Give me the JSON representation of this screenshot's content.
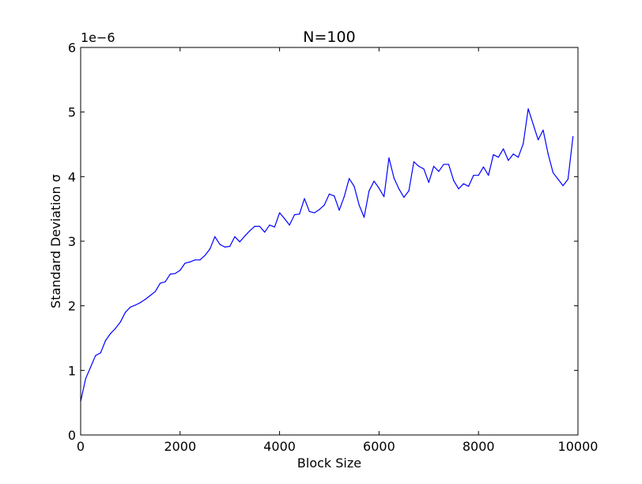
{
  "chart_data": {
    "type": "line",
    "title": "N=100",
    "xlabel": "Block Size",
    "ylabel": "Standard Deviation σ",
    "y_offset_text": "1e−6",
    "xlim": [
      0,
      10000
    ],
    "ylim": [
      0,
      6
    ],
    "x_ticks": [
      0,
      2000,
      4000,
      6000,
      8000,
      10000
    ],
    "x_tick_labels": [
      "0",
      "2000",
      "4000",
      "6000",
      "8000",
      "10000"
    ],
    "y_ticks": [
      0,
      1,
      2,
      3,
      4,
      5,
      6
    ],
    "y_tick_labels": [
      "0",
      "1",
      "2",
      "3",
      "4",
      "5",
      "6"
    ],
    "grid": false,
    "series": [
      {
        "color": "#0000ff",
        "x": [
          0,
          100,
          200,
          300,
          400,
          500,
          600,
          700,
          800,
          900,
          1000,
          1100,
          1200,
          1300,
          1400,
          1500,
          1600,
          1700,
          1800,
          1900,
          2000,
          2100,
          2200,
          2300,
          2400,
          2500,
          2600,
          2700,
          2800,
          2900,
          3000,
          3100,
          3200,
          3300,
          3400,
          3500,
          3600,
          3700,
          3800,
          3900,
          4000,
          4100,
          4200,
          4300,
          4400,
          4500,
          4600,
          4700,
          4800,
          4900,
          5000,
          5100,
          5200,
          5300,
          5400,
          5500,
          5600,
          5700,
          5800,
          5900,
          6000,
          6100,
          6200,
          6300,
          6400,
          6500,
          6600,
          6700,
          6800,
          6900,
          7000,
          7100,
          7200,
          7300,
          7400,
          7500,
          7600,
          7700,
          7800,
          7900,
          8000,
          8100,
          8200,
          8300,
          8400,
          8500,
          8600,
          8700,
          8800,
          8900,
          9000,
          9100,
          9200,
          9300,
          9400,
          9500,
          9600,
          9700,
          9800,
          9900
        ],
        "y": [
          0.52,
          0.87,
          1.05,
          1.23,
          1.27,
          1.46,
          1.57,
          1.65,
          1.75,
          1.9,
          1.98,
          2.01,
          2.05,
          2.1,
          2.16,
          2.22,
          2.35,
          2.37,
          2.49,
          2.5,
          2.55,
          2.66,
          2.68,
          2.71,
          2.71,
          2.78,
          2.88,
          3.07,
          2.95,
          2.91,
          2.92,
          3.07,
          2.99,
          3.08,
          3.16,
          3.23,
          3.23,
          3.14,
          3.25,
          3.22,
          3.44,
          3.35,
          3.25,
          3.41,
          3.42,
          3.66,
          3.46,
          3.44,
          3.49,
          3.56,
          3.73,
          3.7,
          3.48,
          3.69,
          3.97,
          3.85,
          3.56,
          3.37,
          3.78,
          3.93,
          3.82,
          3.69,
          4.29,
          3.98,
          3.81,
          3.68,
          3.78,
          4.23,
          4.16,
          4.12,
          3.91,
          4.16,
          4.08,
          4.19,
          4.19,
          3.94,
          3.81,
          3.89,
          3.85,
          4.02,
          4.02,
          4.15,
          4.02,
          4.34,
          4.3,
          4.43,
          4.25,
          4.35,
          4.3,
          4.51,
          5.05,
          4.81,
          4.57,
          4.72,
          4.35,
          4.06,
          3.96,
          3.86,
          3.96,
          4.62
        ]
      }
    ]
  }
}
